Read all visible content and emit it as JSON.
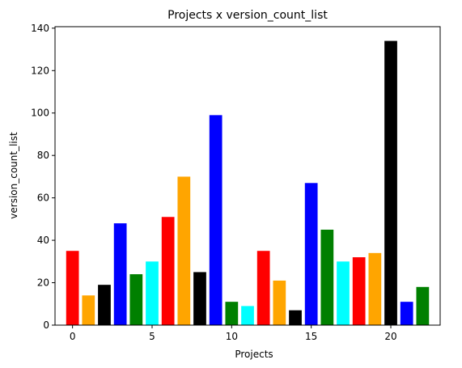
{
  "chart_data": {
    "type": "bar",
    "title": "Projects x version_count_list",
    "xlabel": "Projects",
    "ylabel": "version_count_list",
    "x": [
      0,
      1,
      2,
      3,
      4,
      5,
      6,
      7,
      8,
      9,
      10,
      11,
      12,
      13,
      14,
      15,
      16,
      17,
      18,
      19,
      20,
      21,
      22
    ],
    "values": [
      35,
      14,
      19,
      48,
      24,
      30,
      51,
      70,
      25,
      99,
      11,
      9,
      35,
      21,
      7,
      67,
      45,
      30,
      32,
      34,
      134,
      11,
      18
    ],
    "colors": [
      "#ff0000",
      "#ffa500",
      "#000000",
      "#0000ff",
      "#008000",
      "#00ffff"
    ],
    "xlim": [
      -1.1,
      23.1
    ],
    "ylim": [
      0,
      140.7
    ],
    "xticks": [
      0,
      5,
      10,
      15,
      20
    ],
    "yticks": [
      0,
      20,
      40,
      60,
      80,
      100,
      120,
      140
    ],
    "grid": false,
    "legend": false
  }
}
